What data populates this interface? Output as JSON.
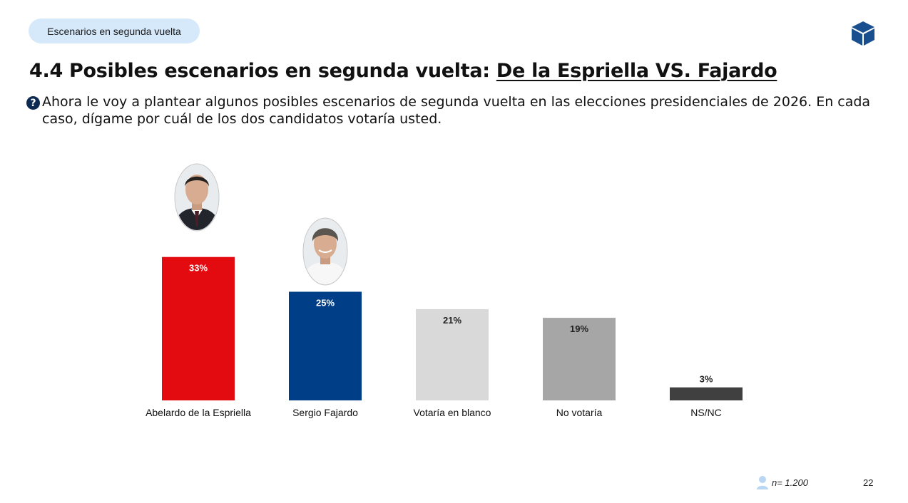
{
  "header": {
    "pill_label": "Escenarios en segunda vuelta",
    "title_prefix": "4.4 Posibles escenarios en segunda vuelta: ",
    "title_highlight": "De la Espriella VS. Fajardo",
    "question": "Ahora le voy a plantear algunos posibles escenarios de segunda vuelta en las elecciones presidenciales de 2026. En cada caso, dígame por cuál de los dos candidatos votaría usted."
  },
  "chart_data": {
    "type": "bar",
    "title": "",
    "xlabel": "",
    "ylabel": "",
    "ylim": [
      0,
      40
    ],
    "grid": false,
    "categories": [
      "Abelardo de la Espriella",
      "Sergio Fajardo",
      "Votaría en blanco",
      "No votaría",
      "NS/NC"
    ],
    "values": [
      33,
      25,
      21,
      19,
      3
    ],
    "data_labels": [
      "33%",
      "25%",
      "21%",
      "19%",
      "3%"
    ],
    "colors": [
      "#e30b0f",
      "#003f87",
      "#d9d9d9",
      "#a6a6a6",
      "#404040"
    ],
    "label_colors": [
      "#ffffff",
      "#ffffff",
      "#222222",
      "#222222",
      "#222222"
    ]
  },
  "footer": {
    "sample": "n= 1.200",
    "page_number": "22"
  },
  "icons": {
    "logo": "cube-logo-icon",
    "question": "question-icon",
    "sample": "person-icon"
  },
  "colors": {
    "pill_bg": "#d6e9fb",
    "brand_navy": "#0d2a52",
    "logo_blue": "#1a4f8f"
  }
}
